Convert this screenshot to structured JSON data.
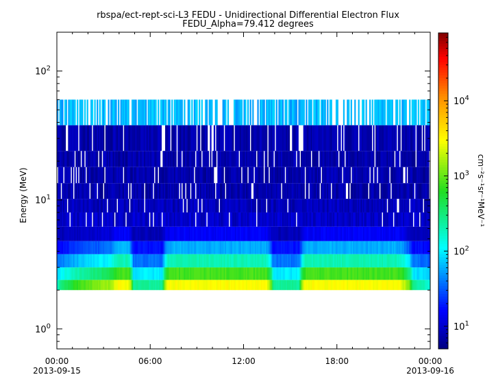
{
  "chart_data": {
    "type": "heatmap",
    "title": "rbspa/ect-rept-sci-L3  FEDU - Unidirectional Differential Electron Flux",
    "subtitle": "FEDU_Alpha=79.412 degrees",
    "ylabel": "Energy (MeV)",
    "colorbar_label": "cm⁻²s⁻¹sr⁻¹MeV⁻¹",
    "y_scale": "log",
    "ylim": [
      0.7,
      200
    ],
    "x_range_hours": [
      0,
      24
    ],
    "x_ticks": [
      {
        "h": 0,
        "label": "00:00",
        "date": "2013-09-15"
      },
      {
        "h": 6,
        "label": "06:00",
        "date": ""
      },
      {
        "h": 12,
        "label": "12:00",
        "date": ""
      },
      {
        "h": 18,
        "label": "18:00",
        "date": ""
      },
      {
        "h": 24,
        "label": "00:00",
        "date": "2013-09-16"
      }
    ],
    "y_ticks": [
      {
        "value": 1,
        "base": "10",
        "exp": "0"
      },
      {
        "value": 10,
        "base": "10",
        "exp": "1"
      },
      {
        "value": 100,
        "base": "10",
        "exp": "2"
      }
    ],
    "colorbar_ticks": [
      {
        "value": 10,
        "base": "10",
        "exp": "1"
      },
      {
        "value": 100,
        "base": "10",
        "exp": "2"
      },
      {
        "value": 1000,
        "base": "10",
        "exp": "3"
      },
      {
        "value": 10000,
        "base": "10",
        "exp": "4"
      }
    ],
    "colorbar_range": [
      5,
      80000
    ],
    "channels_mev": [
      {
        "low": 2.0,
        "high": 2.4,
        "base_flux": 3000,
        "dip_flux": 100
      },
      {
        "low": 2.4,
        "high": 3.0,
        "base_flux": 800,
        "dip_flux": 60
      },
      {
        "low": 3.0,
        "high": 3.8,
        "base_flux": 200,
        "dip_flux": 30
      },
      {
        "low": 3.8,
        "high": 4.8,
        "base_flux": 60,
        "dip_flux": 15
      },
      {
        "low": 4.8,
        "high": 6.2,
        "base_flux": 15,
        "dip_flux": 8
      },
      {
        "low": 6.2,
        "high": 8.0,
        "base_flux": 9,
        "dip_flux": 8
      },
      {
        "low": 8.0,
        "high": 10.2,
        "base_flux": 8,
        "dip_flux": 8
      },
      {
        "low": 10.2,
        "high": 13.5,
        "base_flux": 7,
        "dip_flux": 7
      },
      {
        "low": 13.5,
        "high": 18.0,
        "base_flux": 7,
        "dip_flux": 7
      },
      {
        "low": 18.0,
        "high": 24.0,
        "base_flux": 7,
        "dip_flux": 7
      },
      {
        "low": 24.0,
        "high": 38.0,
        "base_flux": 7,
        "dip_flux": 7
      },
      {
        "low": 38.0,
        "high": 60.0,
        "base_flux": 60,
        "dip_flux": 60
      }
    ],
    "flux_envelope_hours": [
      {
        "h": 0.0,
        "factor": 0.02
      },
      {
        "h": 3.5,
        "factor": 0.5
      },
      {
        "h": 4.4,
        "factor": 1.6
      },
      {
        "h": 4.9,
        "factor": 0.05
      },
      {
        "h": 6.8,
        "factor": 0.05
      },
      {
        "h": 7.6,
        "factor": 2.0
      },
      {
        "h": 12.5,
        "factor": 1.6
      },
      {
        "h": 13.4,
        "factor": 1.2
      },
      {
        "h": 13.9,
        "factor": 0.05
      },
      {
        "h": 15.6,
        "factor": 0.05
      },
      {
        "h": 16.4,
        "factor": 2.0
      },
      {
        "h": 21.5,
        "factor": 1.4
      },
      {
        "h": 22.4,
        "factor": 0.6
      },
      {
        "h": 22.9,
        "factor": 0.05
      },
      {
        "h": 24.0,
        "factor": 0.02
      }
    ]
  }
}
